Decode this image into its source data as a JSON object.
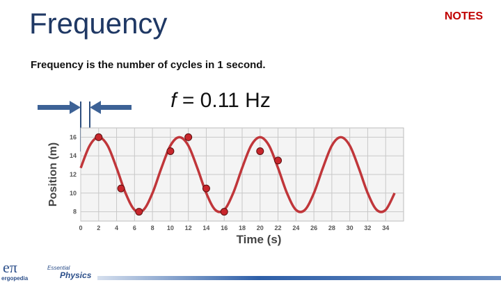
{
  "title": "Frequency",
  "notes": "NOTES",
  "definition": "Frequency is the number of cycles in 1 second.",
  "formula": {
    "symbol": "f",
    "rest": " = 0.11 Hz"
  },
  "logo": {
    "mark": "eπ",
    "name": "ergopedia",
    "series_top": "Essential",
    "series_bottom": "Physics"
  },
  "chart_data": {
    "type": "line",
    "x_label": "Time (s)",
    "y_label": "Position (m)",
    "xlim": [
      0,
      36
    ],
    "ylim": [
      7,
      17
    ],
    "xticks": [
      0,
      2,
      4,
      6,
      8,
      10,
      12,
      14,
      16,
      18,
      20,
      22,
      24,
      26,
      28,
      30,
      32,
      34
    ],
    "yticks": [
      8,
      10,
      12,
      14,
      16
    ],
    "grid": true,
    "series": [
      {
        "color": "#c0363a",
        "x": [
          0,
          1,
          2,
          3,
          4,
          5,
          6,
          7,
          8,
          9,
          10,
          11,
          12,
          13,
          14,
          15,
          16,
          17,
          18,
          19,
          20,
          21,
          22,
          23,
          24,
          25,
          26,
          27,
          28,
          29,
          30,
          31,
          32,
          33,
          34,
          35
        ],
        "values": [
          12.7,
          15.1,
          16,
          15.1,
          12.7,
          10,
          8.2,
          8.2,
          10,
          12.7,
          15.1,
          16,
          15.1,
          12.7,
          10,
          8.2,
          8.2,
          10,
          12.7,
          15.1,
          16,
          15.1,
          12.7,
          10,
          8.2,
          8.2,
          10,
          12.7,
          15.1,
          16,
          15.1,
          12.7,
          10,
          8.2,
          8.2,
          10
        ]
      },
      {
        "color": "#c8262c",
        "markers_only": true,
        "x": [
          2,
          4.5,
          6.5,
          10,
          12,
          14,
          16,
          20,
          22
        ],
        "values": [
          16,
          10.5,
          8,
          14.5,
          16,
          10.5,
          8,
          14.5,
          13.5
        ]
      }
    ]
  }
}
